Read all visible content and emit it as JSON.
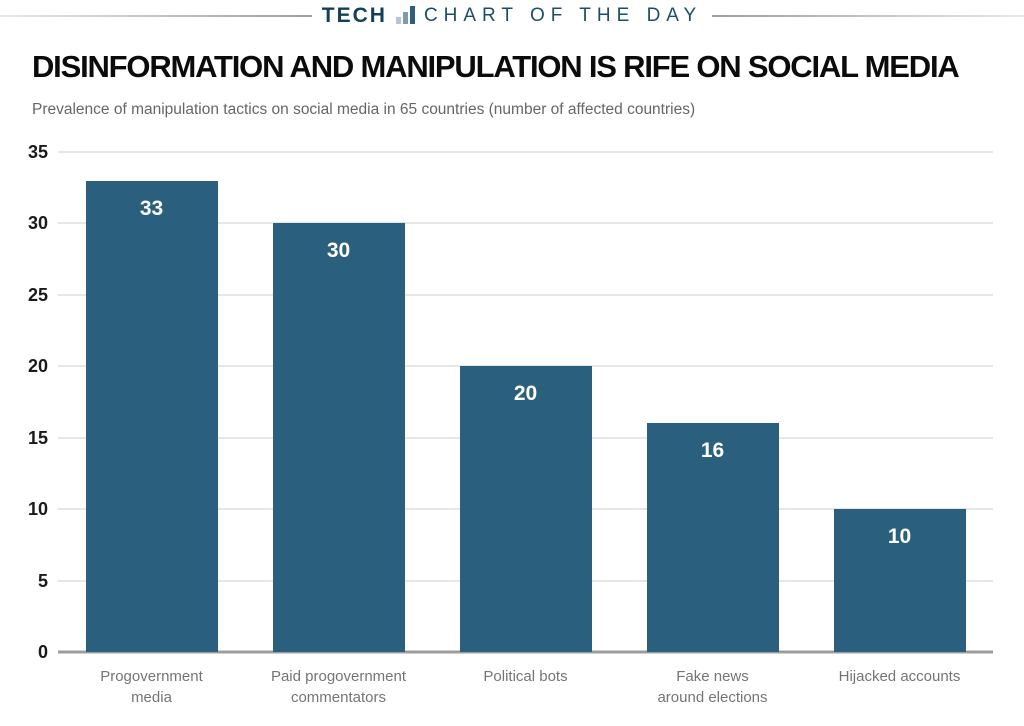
{
  "masthead": {
    "brand": "TECH",
    "tagline": "CHART OF THE DAY",
    "icon": "bar-chart-icon"
  },
  "title": "DISINFORMATION AND MANIPULATION IS RIFE ON SOCIAL MEDIA",
  "subtitle": "Prevalence of manipulation tactics on social media in 65 countries (number of affected countries)",
  "colors": {
    "bar": "#2a5f7d",
    "brand_navy": "#123f5a",
    "tagline_navy": "#1c4e68",
    "gridline": "#e6e6e6",
    "baseline": "#9c9c9c",
    "value_label": "#ffffff",
    "xlabel": "#757575"
  },
  "chart_data": {
    "type": "bar",
    "title": "DISINFORMATION AND MANIPULATION IS RIFE ON SOCIAL MEDIA",
    "subtitle": "Prevalence of manipulation tactics on social media in 65 countries (number of affected countries)",
    "categories": [
      "Progovernment media",
      "Paid progovernment commentators",
      "Political bots",
      "Fake news around elections",
      "Hijacked accounts"
    ],
    "categories_wrapped": [
      [
        "Progovernment",
        "media"
      ],
      [
        "Paid progovernment",
        "commentators"
      ],
      [
        "Political bots"
      ],
      [
        "Fake news",
        "around elections"
      ],
      [
        "Hijacked accounts"
      ]
    ],
    "values": [
      33,
      30,
      20,
      16,
      10
    ],
    "value_label_position": "inside-top",
    "xlabel": "",
    "ylabel": "",
    "yticks": [
      0,
      5,
      10,
      15,
      20,
      25,
      30,
      35
    ],
    "ylim": [
      0,
      35
    ],
    "grid": true,
    "legend": "none"
  }
}
